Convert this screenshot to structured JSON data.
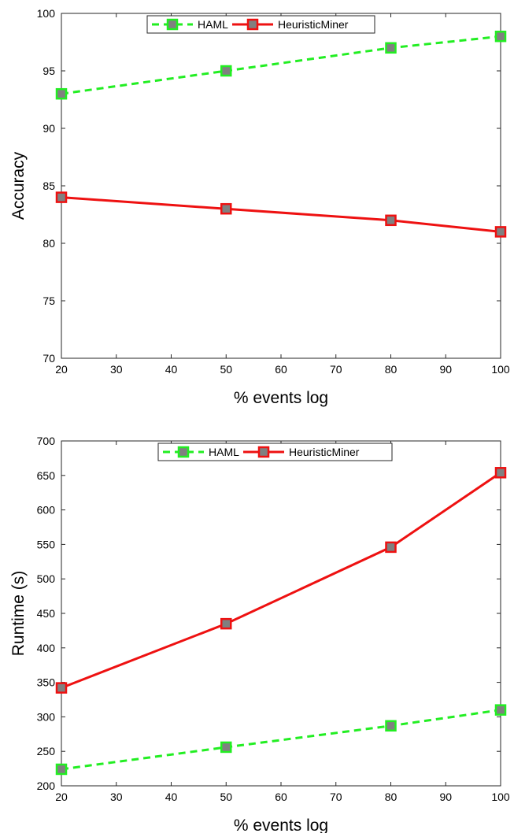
{
  "chart_data": [
    {
      "type": "line",
      "xlabel": "% events log",
      "ylabel": "Accuracy",
      "xlim": [
        20,
        100
      ],
      "ylim": [
        70,
        100
      ],
      "xticks": [
        20,
        30,
        40,
        50,
        60,
        70,
        80,
        90,
        100
      ],
      "yticks": [
        70,
        75,
        80,
        85,
        90,
        95,
        100
      ],
      "grid": false,
      "legend_position": "top-center",
      "x": [
        20,
        50,
        80,
        100
      ],
      "series": [
        {
          "name": "HAML",
          "values": [
            93,
            95,
            97,
            98
          ],
          "color": "#22ee22",
          "line_style": "dashed",
          "marker": "square",
          "marker_fill": "#808080"
        },
        {
          "name": "HeuristicMiner",
          "values": [
            84,
            83,
            82,
            81
          ],
          "color": "#ee1111",
          "line_style": "solid",
          "marker": "square",
          "marker_fill": "#808080"
        }
      ]
    },
    {
      "type": "line",
      "xlabel": "% events log",
      "ylabel": "Runtime (s)",
      "xlim": [
        20,
        100
      ],
      "ylim": [
        200,
        700
      ],
      "xticks": [
        20,
        30,
        40,
        50,
        60,
        70,
        80,
        90,
        100
      ],
      "yticks": [
        200,
        250,
        300,
        350,
        400,
        450,
        500,
        550,
        600,
        650,
        700
      ],
      "grid": false,
      "legend_position": "top-center",
      "x": [
        20,
        50,
        80,
        100
      ],
      "series": [
        {
          "name": "HAML",
          "values": [
            224,
            256,
            287,
            310
          ],
          "color": "#22ee22",
          "line_style": "dashed",
          "marker": "square",
          "marker_fill": "#808080"
        },
        {
          "name": "HeuristicMiner",
          "values": [
            342,
            435,
            546,
            654
          ],
          "color": "#ee1111",
          "line_style": "solid",
          "marker": "square",
          "marker_fill": "#808080"
        }
      ]
    }
  ]
}
